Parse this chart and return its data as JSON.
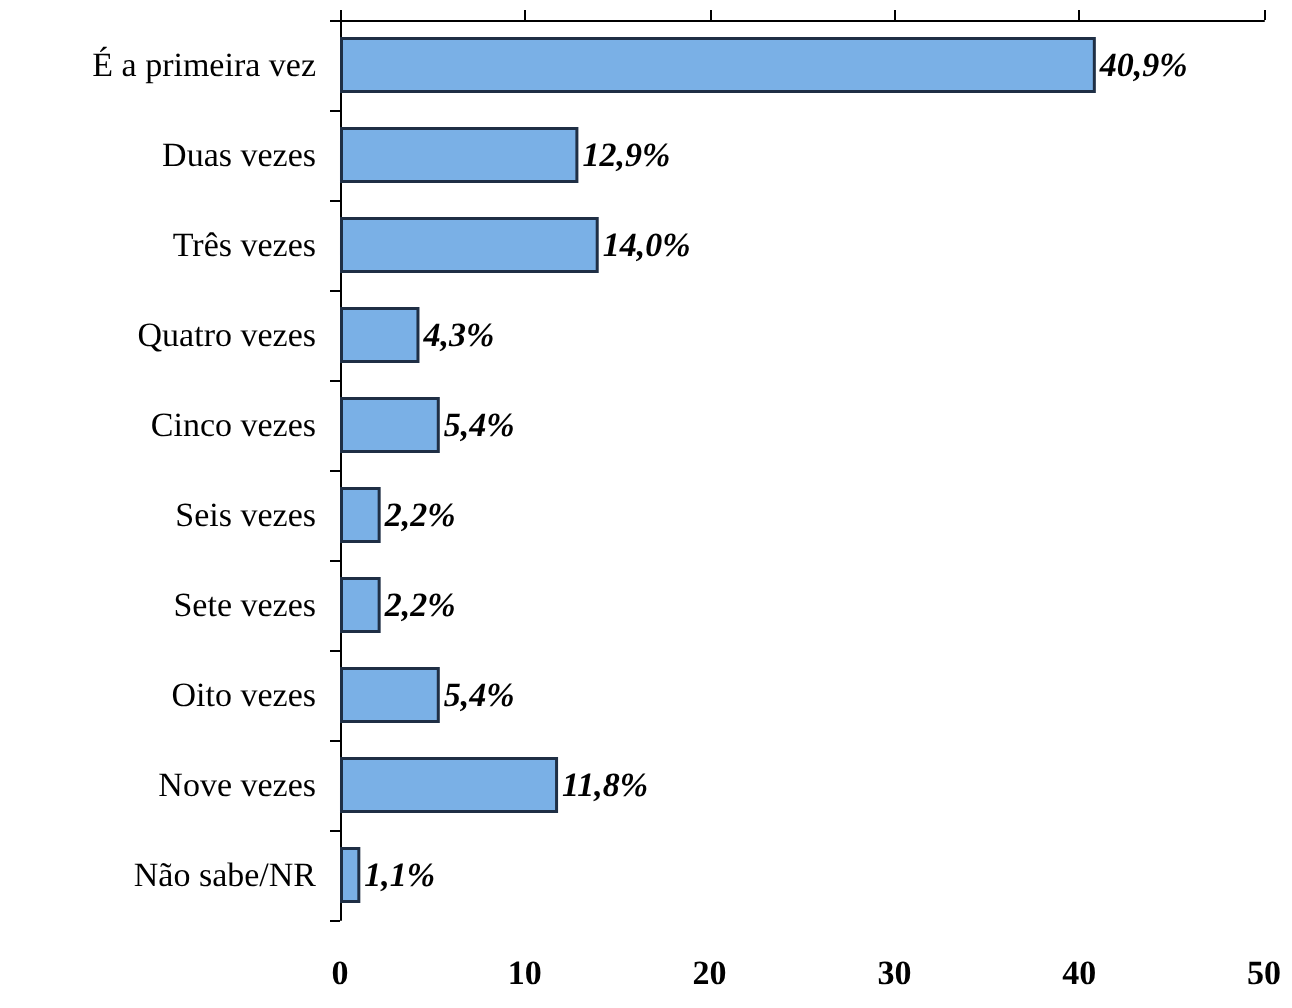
{
  "chart_data": {
    "type": "bar",
    "orientation": "horizontal",
    "categories": [
      "É a primeira vez",
      "Duas vezes",
      "Três vezes",
      "Quatro vezes",
      "Cinco vezes",
      "Seis vezes",
      "Sete vezes",
      "Oito vezes",
      "Nove vezes",
      "Não sabe/NR"
    ],
    "values": [
      40.9,
      12.9,
      14.0,
      4.3,
      5.4,
      2.2,
      2.2,
      5.4,
      11.8,
      1.1
    ],
    "value_labels": [
      "40,9%",
      "12,9%",
      "14,0%",
      "4,3%",
      "5,4%",
      "2,2%",
      "2,2%",
      "5,4%",
      "11,8%",
      "1,1%"
    ],
    "color": "#7ab0e6",
    "xlim": [
      0,
      50
    ],
    "xticks": [
      0,
      10,
      20,
      30,
      40,
      50
    ]
  }
}
